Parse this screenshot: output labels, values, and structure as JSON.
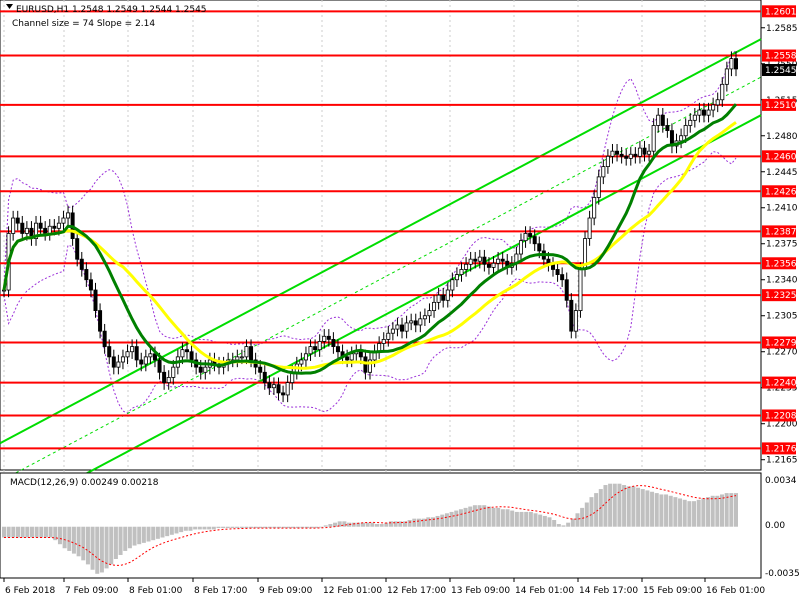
{
  "header": {
    "symbol_line": "EURUSD,H1  1.2548 1.2549 1.2544 1.2545",
    "channel_line": "Channel size = 74 Slope = 2.14"
  },
  "macd": {
    "label": "MACD(12,26,9) 0.00249 0.00218",
    "ticks": [
      "0.0034",
      "0.00",
      "-0.00359"
    ]
  },
  "colors": {
    "level_line": "#ff0000",
    "level_tag_bg": "#ff0000",
    "ma_green": "#008000",
    "ma_yellow": "#ffff00",
    "channel": "#00dd00",
    "bollinger": "#9b30d9",
    "price_tag_bg": "#000000",
    "macd_hist": "#c0c0c0",
    "macd_signal": "#ff0000"
  },
  "chart_data": {
    "type": "line",
    "title": "",
    "ylim": [
      1.2155,
      1.2612
    ],
    "y_ticks": [
      "1.2585",
      "1.2550",
      "1.2515",
      "1.2480",
      "1.2445",
      "1.2410",
      "1.2375",
      "1.2340",
      "1.2305",
      "1.2270",
      "1.2235",
      "1.2200",
      "1.2165"
    ],
    "x_ticks": [
      "6 Feb 2018",
      "7 Feb 09:00",
      "8 Feb 01:00",
      "8 Feb 17:00",
      "9 Feb 09:00",
      "12 Feb 01:00",
      "12 Feb 17:00",
      "13 Feb 09:00",
      "14 Feb 01:00",
      "14 Feb 17:00",
      "15 Feb 09:00",
      "16 Feb 01:00"
    ],
    "levels": [
      "1.2601",
      "1.2558",
      "1.2510",
      "1.2460",
      "1.2426",
      "1.2387",
      "1.2356",
      "1.2325",
      "1.2279",
      "1.2240",
      "1.2208",
      "1.2176"
    ],
    "current_price": "1.2545",
    "close_series": [
      1.233,
      1.2385,
      1.24,
      1.2395,
      1.2385,
      1.239,
      1.238,
      1.2395,
      1.239,
      1.2385,
      1.2392,
      1.239,
      1.2395,
      1.24,
      1.2405,
      1.238,
      1.236,
      1.235,
      1.234,
      1.233,
      1.231,
      1.229,
      1.2275,
      1.2265,
      1.2255,
      1.226,
      1.2265,
      1.227,
      1.2275,
      1.2262,
      1.2258,
      1.2265,
      1.2268,
      1.2262,
      1.225,
      1.224,
      1.2245,
      1.2255,
      1.2265,
      1.2272,
      1.227,
      1.2262,
      1.2255,
      1.225,
      1.2255,
      1.2262,
      1.2258,
      1.2255,
      1.2258,
      1.2262,
      1.2262,
      1.2265,
      1.2265,
      1.2275,
      1.2262,
      1.2255,
      1.225,
      1.224,
      1.2235,
      1.2238,
      1.223,
      1.2228,
      1.224,
      1.225,
      1.2258,
      1.2262,
      1.2268,
      1.2275,
      1.2272,
      1.228,
      1.2285,
      1.2282,
      1.2275,
      1.227,
      1.2265,
      1.2262,
      1.2268,
      1.227,
      1.2265,
      1.225,
      1.2262,
      1.227,
      1.2278,
      1.2282,
      1.2288,
      1.2292,
      1.2296,
      1.229,
      1.2298,
      1.23,
      1.2296,
      1.2302,
      1.2305,
      1.231,
      1.2318,
      1.2325,
      1.232,
      1.233,
      1.234,
      1.2345,
      1.235,
      1.2355,
      1.236,
      1.2358,
      1.2362,
      1.2355,
      1.2352,
      1.2356,
      1.236,
      1.2358,
      1.2352,
      1.2356,
      1.2365,
      1.2378,
      1.2385,
      1.2382,
      1.2375,
      1.2368,
      1.236,
      1.2355,
      1.235,
      1.2345,
      1.234,
      1.232,
      1.229,
      1.231,
      1.235,
      1.238,
      1.24,
      1.242,
      1.244,
      1.245,
      1.246,
      1.2465,
      1.2462,
      1.246,
      1.2458,
      1.2462,
      1.246,
      1.2468,
      1.2462,
      1.2465,
      1.249,
      1.25,
      1.249,
      1.2485,
      1.247,
      1.2475,
      1.248,
      1.249,
      1.2495,
      1.25,
      1.2505,
      1.25,
      1.2505,
      1.251,
      1.2515,
      1.253,
      1.2545,
      1.2555,
      1.2545
    ],
    "macd_values": [
      -0.0008,
      -0.0008,
      -0.0008,
      -0.0008,
      -0.0008,
      -0.0008,
      -0.0008,
      -0.0008,
      -0.0008,
      -0.0008,
      -0.0008,
      -0.001,
      -0.0013,
      -0.0016,
      -0.0018,
      -0.002,
      -0.0022,
      -0.0025,
      -0.0028,
      -0.0032,
      -0.0035,
      -0.0034,
      -0.0031,
      -0.0028,
      -0.0024,
      -0.0021,
      -0.0018,
      -0.0016,
      -0.0014,
      -0.0013,
      -0.0012,
      -0.0011,
      -0.001,
      -0.0009,
      -0.0008,
      -0.0007,
      -0.0006,
      -0.0005,
      -0.0004,
      -0.0003,
      -0.0003,
      -0.0002,
      -0.0002,
      -0.0002,
      -0.0002,
      -0.0002,
      -0.0001,
      -0.0001,
      -0.0001,
      -0.0001,
      -0.0001,
      -0.0001,
      -0.0001,
      -0.0001,
      -0.0001,
      -0.0001,
      -0.0001,
      -0.0001,
      -0.0001,
      -0.0001,
      -0.0001,
      -0.0001,
      -0.0001,
      -0.0001,
      -0.0001,
      -0.0001,
      -0.0001,
      -0.0001,
      0.0,
      0.0001,
      0.0002,
      0.0003,
      0.0004,
      0.0004,
      0.0003,
      0.0003,
      0.0003,
      0.0003,
      0.0003,
      0.0003,
      0.0002,
      0.0002,
      0.0003,
      0.0004,
      0.0004,
      0.0004,
      0.0004,
      0.0005,
      0.0006,
      0.0006,
      0.0006,
      0.0007,
      0.0007,
      0.0008,
      0.0009,
      0.001,
      0.0011,
      0.0012,
      0.0013,
      0.0014,
      0.0015,
      0.0016,
      0.0016,
      0.0016,
      0.0015,
      0.0014,
      0.0014,
      0.0013,
      0.0013,
      0.0012,
      0.0011,
      0.0011,
      0.0011,
      0.0011,
      0.001,
      0.0009,
      0.0008,
      0.0007,
      0.0005,
      0.0002,
      0.0001,
      0.0003,
      0.0006,
      0.001,
      0.0014,
      0.0018,
      0.0022,
      0.0025,
      0.0028,
      0.0031,
      0.0032,
      0.0032,
      0.0032,
      0.0031,
      0.003,
      0.003,
      0.0029,
      0.0028,
      0.0027,
      0.0026,
      0.0025,
      0.0024,
      0.0024,
      0.0023,
      0.0022,
      0.0021,
      0.002,
      0.0019,
      0.0019,
      0.002,
      0.0021,
      0.0022,
      0.0023,
      0.0023,
      0.0024,
      0.0025,
      0.0025,
      0.0025
    ]
  }
}
